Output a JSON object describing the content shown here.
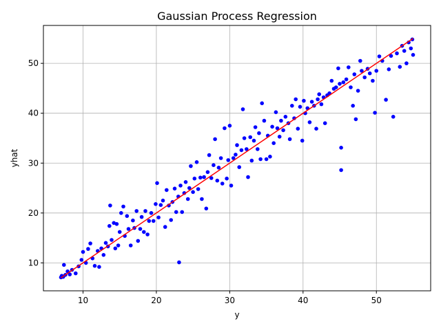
{
  "chart_data": {
    "type": "scatter",
    "title": "Gaussian Process Regression",
    "xlabel": "y",
    "ylabel": "yhat",
    "xlim": [
      4.6,
      57.4
    ],
    "ylim": [
      4.4,
      57.6
    ],
    "xticks": [
      10,
      20,
      30,
      40,
      50
    ],
    "yticks": [
      10,
      20,
      30,
      40,
      50
    ],
    "grid": true,
    "legend": "none",
    "series": [
      {
        "kind": "scatter",
        "color": "#0000ff",
        "points": [
          [
            7.0,
            7.1
          ],
          [
            7.1,
            7.4
          ],
          [
            7.3,
            7.2
          ],
          [
            7.4,
            9.6
          ],
          [
            7.6,
            7.6
          ],
          [
            7.9,
            8.3
          ],
          [
            8.2,
            7.7
          ],
          [
            8.5,
            8.6
          ],
          [
            9.0,
            7.9
          ],
          [
            9.4,
            9.3
          ],
          [
            9.8,
            10.6
          ],
          [
            10.0,
            12.2
          ],
          [
            10.4,
            10.0
          ],
          [
            10.7,
            12.8
          ],
          [
            11.0,
            13.9
          ],
          [
            11.3,
            10.9
          ],
          [
            11.6,
            9.4
          ],
          [
            12.0,
            12.4
          ],
          [
            12.2,
            9.2
          ],
          [
            12.5,
            12.9
          ],
          [
            12.8,
            11.6
          ],
          [
            13.1,
            14.0
          ],
          [
            13.4,
            13.3
          ],
          [
            13.6,
            17.4
          ],
          [
            13.7,
            21.5
          ],
          [
            13.9,
            14.6
          ],
          [
            14.2,
            18.0
          ],
          [
            14.4,
            12.9
          ],
          [
            14.6,
            17.8
          ],
          [
            14.8,
            13.5
          ],
          [
            15.0,
            16.2
          ],
          [
            15.2,
            20.0
          ],
          [
            15.5,
            21.3
          ],
          [
            15.7,
            15.4
          ],
          [
            16.0,
            19.4
          ],
          [
            16.2,
            16.8
          ],
          [
            16.5,
            13.5
          ],
          [
            16.8,
            18.5
          ],
          [
            17.0,
            17.0
          ],
          [
            17.3,
            20.4
          ],
          [
            17.5,
            14.4
          ],
          [
            17.8,
            16.8
          ],
          [
            18.0,
            19.2
          ],
          [
            18.3,
            16.2
          ],
          [
            18.5,
            20.4
          ],
          [
            18.8,
            15.7
          ],
          [
            19.0,
            18.4
          ],
          [
            19.3,
            20.0
          ],
          [
            19.6,
            18.4
          ],
          [
            19.9,
            21.8
          ],
          [
            20.1,
            26.0
          ],
          [
            20.3,
            19.1
          ],
          [
            20.6,
            21.6
          ],
          [
            20.9,
            22.5
          ],
          [
            21.2,
            17.2
          ],
          [
            21.4,
            24.6
          ],
          [
            21.7,
            21.5
          ],
          [
            22.0,
            18.6
          ],
          [
            22.2,
            22.2
          ],
          [
            22.5,
            24.9
          ],
          [
            22.7,
            20.2
          ],
          [
            23.0,
            23.3
          ],
          [
            23.1,
            10.1
          ],
          [
            23.3,
            25.5
          ],
          [
            23.5,
            20.2
          ],
          [
            23.8,
            24.0
          ],
          [
            24.0,
            26.2
          ],
          [
            24.3,
            22.8
          ],
          [
            24.5,
            25.0
          ],
          [
            24.7,
            29.4
          ],
          [
            25.0,
            24.2
          ],
          [
            25.2,
            26.9
          ],
          [
            25.5,
            30.2
          ],
          [
            25.7,
            24.8
          ],
          [
            26.0,
            27.1
          ],
          [
            26.2,
            22.8
          ],
          [
            26.5,
            27.2
          ],
          [
            26.8,
            20.9
          ],
          [
            27.0,
            28.2
          ],
          [
            27.2,
            31.6
          ],
          [
            27.5,
            27.0
          ],
          [
            27.8,
            29.6
          ],
          [
            28.0,
            34.8
          ],
          [
            28.3,
            26.5
          ],
          [
            28.5,
            29.1
          ],
          [
            28.8,
            31.0
          ],
          [
            29.0,
            25.9
          ],
          [
            29.3,
            37.0
          ],
          [
            29.6,
            26.9
          ],
          [
            29.8,
            30.6
          ],
          [
            30.0,
            37.5
          ],
          [
            30.2,
            25.5
          ],
          [
            30.5,
            31.0
          ],
          [
            30.8,
            31.7
          ],
          [
            31.0,
            33.6
          ],
          [
            31.3,
            29.2
          ],
          [
            31.6,
            32.6
          ],
          [
            31.8,
            40.8
          ],
          [
            32.0,
            35.0
          ],
          [
            32.3,
            32.8
          ],
          [
            32.5,
            27.2
          ],
          [
            32.8,
            35.2
          ],
          [
            33.0,
            30.5
          ],
          [
            33.3,
            34.5
          ],
          [
            33.5,
            37.2
          ],
          [
            33.8,
            32.8
          ],
          [
            34.0,
            36.0
          ],
          [
            34.2,
            30.8
          ],
          [
            34.4,
            42.0
          ],
          [
            34.7,
            38.5
          ],
          [
            35.0,
            30.8
          ],
          [
            35.2,
            35.5
          ],
          [
            35.5,
            31.3
          ],
          [
            35.8,
            37.3
          ],
          [
            36.0,
            34.0
          ],
          [
            36.3,
            40.2
          ],
          [
            36.5,
            37.0
          ],
          [
            36.8,
            35.3
          ],
          [
            37.0,
            38.5
          ],
          [
            37.3,
            36.6
          ],
          [
            37.6,
            39.3
          ],
          [
            38.0,
            38.0
          ],
          [
            38.2,
            34.8
          ],
          [
            38.5,
            41.5
          ],
          [
            38.8,
            39.0
          ],
          [
            39.0,
            42.8
          ],
          [
            39.3,
            36.9
          ],
          [
            39.6,
            41.3
          ],
          [
            39.9,
            34.5
          ],
          [
            40.1,
            42.5
          ],
          [
            40.3,
            40.0
          ],
          [
            40.6,
            41.0
          ],
          [
            40.9,
            38.2
          ],
          [
            41.2,
            42.3
          ],
          [
            41.5,
            41.5
          ],
          [
            41.8,
            36.9
          ],
          [
            42.0,
            42.8
          ],
          [
            42.2,
            43.8
          ],
          [
            42.5,
            41.8
          ],
          [
            42.8,
            43.2
          ],
          [
            43.0,
            38.0
          ],
          [
            43.3,
            43.6
          ],
          [
            43.6,
            44.0
          ],
          [
            43.9,
            46.5
          ],
          [
            44.2,
            44.9
          ],
          [
            44.5,
            45.2
          ],
          [
            44.8,
            49.0
          ],
          [
            45.0,
            45.9
          ],
          [
            45.2,
            33.1
          ],
          [
            45.2,
            28.6
          ],
          [
            45.5,
            46.2
          ],
          [
            45.9,
            46.8
          ],
          [
            46.2,
            49.2
          ],
          [
            46.5,
            45.2
          ],
          [
            46.8,
            41.5
          ],
          [
            47.0,
            47.8
          ],
          [
            47.2,
            38.8
          ],
          [
            47.5,
            44.5
          ],
          [
            47.8,
            50.5
          ],
          [
            48.0,
            48.5
          ],
          [
            48.4,
            47.2
          ],
          [
            48.8,
            48.9
          ],
          [
            49.1,
            48.0
          ],
          [
            49.5,
            46.5
          ],
          [
            49.8,
            40.1
          ],
          [
            50.0,
            48.5
          ],
          [
            50.4,
            51.4
          ],
          [
            50.8,
            50.5
          ],
          [
            51.3,
            42.7
          ],
          [
            51.7,
            48.8
          ],
          [
            52.0,
            51.5
          ],
          [
            52.3,
            39.3
          ],
          [
            52.8,
            52.0
          ],
          [
            53.2,
            49.3
          ],
          [
            53.5,
            53.5
          ],
          [
            53.8,
            52.5
          ],
          [
            54.1,
            50.0
          ],
          [
            54.4,
            54.2
          ],
          [
            54.7,
            53.0
          ],
          [
            54.9,
            54.8
          ],
          [
            55.0,
            51.7
          ]
        ]
      },
      {
        "kind": "line",
        "color": "#ff0000",
        "points": [
          [
            7.0,
            7.0
          ],
          [
            55.0,
            55.0
          ]
        ]
      }
    ]
  }
}
